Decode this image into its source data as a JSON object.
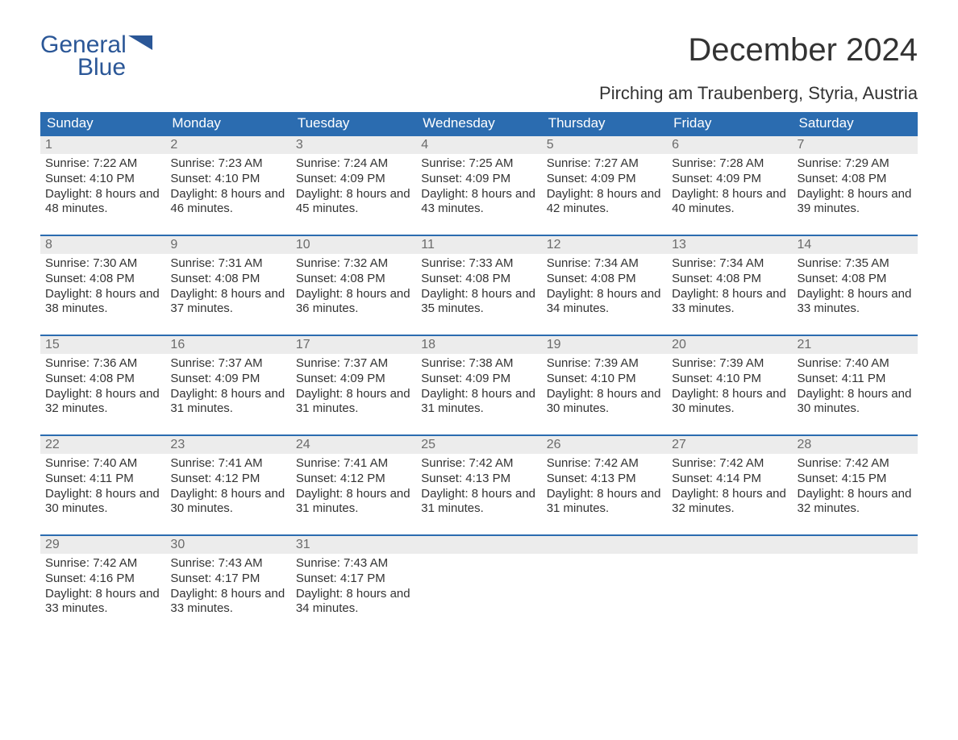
{
  "brand": {
    "line1": "General",
    "line2": "Blue",
    "color": "#2b5797"
  },
  "title": "December 2024",
  "location": "Pirching am Traubenberg, Styria, Austria",
  "header_bg": "#2b6cb0",
  "header_fg": "#ffffff",
  "daynum_bg": "#ececec",
  "daynum_fg": "#6b6b6b",
  "rule_color": "#2b6cb0",
  "text_color": "#333333",
  "columns": [
    "Sunday",
    "Monday",
    "Tuesday",
    "Wednesday",
    "Thursday",
    "Friday",
    "Saturday"
  ],
  "weeks": [
    [
      {
        "n": "1",
        "sr": "7:22 AM",
        "ss": "4:10 PM",
        "dl": "8 hours and 48 minutes."
      },
      {
        "n": "2",
        "sr": "7:23 AM",
        "ss": "4:10 PM",
        "dl": "8 hours and 46 minutes."
      },
      {
        "n": "3",
        "sr": "7:24 AM",
        "ss": "4:09 PM",
        "dl": "8 hours and 45 minutes."
      },
      {
        "n": "4",
        "sr": "7:25 AM",
        "ss": "4:09 PM",
        "dl": "8 hours and 43 minutes."
      },
      {
        "n": "5",
        "sr": "7:27 AM",
        "ss": "4:09 PM",
        "dl": "8 hours and 42 minutes."
      },
      {
        "n": "6",
        "sr": "7:28 AM",
        "ss": "4:09 PM",
        "dl": "8 hours and 40 minutes."
      },
      {
        "n": "7",
        "sr": "7:29 AM",
        "ss": "4:08 PM",
        "dl": "8 hours and 39 minutes."
      }
    ],
    [
      {
        "n": "8",
        "sr": "7:30 AM",
        "ss": "4:08 PM",
        "dl": "8 hours and 38 minutes."
      },
      {
        "n": "9",
        "sr": "7:31 AM",
        "ss": "4:08 PM",
        "dl": "8 hours and 37 minutes."
      },
      {
        "n": "10",
        "sr": "7:32 AM",
        "ss": "4:08 PM",
        "dl": "8 hours and 36 minutes."
      },
      {
        "n": "11",
        "sr": "7:33 AM",
        "ss": "4:08 PM",
        "dl": "8 hours and 35 minutes."
      },
      {
        "n": "12",
        "sr": "7:34 AM",
        "ss": "4:08 PM",
        "dl": "8 hours and 34 minutes."
      },
      {
        "n": "13",
        "sr": "7:34 AM",
        "ss": "4:08 PM",
        "dl": "8 hours and 33 minutes."
      },
      {
        "n": "14",
        "sr": "7:35 AM",
        "ss": "4:08 PM",
        "dl": "8 hours and 33 minutes."
      }
    ],
    [
      {
        "n": "15",
        "sr": "7:36 AM",
        "ss": "4:08 PM",
        "dl": "8 hours and 32 minutes."
      },
      {
        "n": "16",
        "sr": "7:37 AM",
        "ss": "4:09 PM",
        "dl": "8 hours and 31 minutes."
      },
      {
        "n": "17",
        "sr": "7:37 AM",
        "ss": "4:09 PM",
        "dl": "8 hours and 31 minutes."
      },
      {
        "n": "18",
        "sr": "7:38 AM",
        "ss": "4:09 PM",
        "dl": "8 hours and 31 minutes."
      },
      {
        "n": "19",
        "sr": "7:39 AM",
        "ss": "4:10 PM",
        "dl": "8 hours and 30 minutes."
      },
      {
        "n": "20",
        "sr": "7:39 AM",
        "ss": "4:10 PM",
        "dl": "8 hours and 30 minutes."
      },
      {
        "n": "21",
        "sr": "7:40 AM",
        "ss": "4:11 PM",
        "dl": "8 hours and 30 minutes."
      }
    ],
    [
      {
        "n": "22",
        "sr": "7:40 AM",
        "ss": "4:11 PM",
        "dl": "8 hours and 30 minutes."
      },
      {
        "n": "23",
        "sr": "7:41 AM",
        "ss": "4:12 PM",
        "dl": "8 hours and 30 minutes."
      },
      {
        "n": "24",
        "sr": "7:41 AM",
        "ss": "4:12 PM",
        "dl": "8 hours and 31 minutes."
      },
      {
        "n": "25",
        "sr": "7:42 AM",
        "ss": "4:13 PM",
        "dl": "8 hours and 31 minutes."
      },
      {
        "n": "26",
        "sr": "7:42 AM",
        "ss": "4:13 PM",
        "dl": "8 hours and 31 minutes."
      },
      {
        "n": "27",
        "sr": "7:42 AM",
        "ss": "4:14 PM",
        "dl": "8 hours and 32 minutes."
      },
      {
        "n": "28",
        "sr": "7:42 AM",
        "ss": "4:15 PM",
        "dl": "8 hours and 32 minutes."
      }
    ],
    [
      {
        "n": "29",
        "sr": "7:42 AM",
        "ss": "4:16 PM",
        "dl": "8 hours and 33 minutes."
      },
      {
        "n": "30",
        "sr": "7:43 AM",
        "ss": "4:17 PM",
        "dl": "8 hours and 33 minutes."
      },
      {
        "n": "31",
        "sr": "7:43 AM",
        "ss": "4:17 PM",
        "dl": "8 hours and 34 minutes."
      },
      null,
      null,
      null,
      null
    ]
  ],
  "labels": {
    "sunrise": "Sunrise: ",
    "sunset": "Sunset: ",
    "daylight": "Daylight: "
  }
}
